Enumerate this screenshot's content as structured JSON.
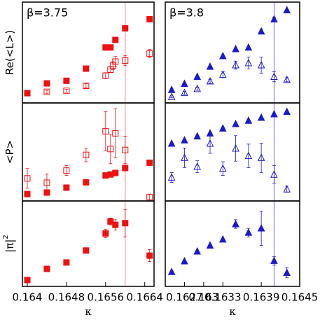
{
  "chart_data": [
    {
      "type": "scatter",
      "annotation": "β=3.75",
      "annotation_color": "#ee1111",
      "ylabel": "Re(<L>)",
      "x": [
        0.164,
        0.1644,
        0.1648,
        0.1652,
        0.1656,
        0.1657,
        0.16575,
        0.1658,
        0.166,
        0.1665
      ],
      "xlim": [
        0.1639,
        0.16659
      ],
      "ylim": [
        0,
        100
      ],
      "vline": 0.166,
      "vline_color": "#f08080",
      "series": [
        {
          "color": "#ee1111",
          "marker": "square",
          "filled": true,
          "values": [
            9.7,
            19.4,
            22,
            34,
            55,
            55,
            null,
            62.5,
            74,
            83
          ],
          "errors": [
            null,
            null,
            null,
            null,
            null,
            null,
            null,
            null,
            2,
            2
          ]
        },
        {
          "color": "#ee1111",
          "marker": "square",
          "filled": false,
          "values": [
            9.7,
            11,
            12,
            17,
            27,
            33,
            37,
            41,
            42,
            49
          ],
          "errors": [
            1.5,
            1.5,
            1.5,
            2,
            3,
            3,
            4,
            5,
            5,
            4
          ]
        }
      ]
    },
    {
      "type": "scatter",
      "annotation": "β=3.8",
      "annotation_color": "#1a1acc",
      "x": [
        0.1625,
        0.1627,
        0.1629,
        0.1631,
        0.1633,
        0.1635,
        0.1637,
        0.1639,
        0.1641,
        0.1643
      ],
      "xlim": [
        0.1624,
        0.1645
      ],
      "ylim": [
        0,
        100
      ],
      "vline": 0.1641,
      "vline_color": "#6a6aee",
      "series": [
        {
          "color": "#1a1acc",
          "marker": "triangle",
          "filled": true,
          "values": [
            13,
            19,
            26,
            36,
            46.5,
            53.5,
            55,
            71,
            83,
            92
          ],
          "errors": [
            null,
            null,
            null,
            null,
            null,
            null,
            null,
            2,
            2,
            null
          ]
        },
        {
          "color": "#1a1acc",
          "marker": "triangle",
          "filled": false,
          "values": [
            6,
            10,
            14,
            21.5,
            28,
            37.5,
            39.6,
            37.5,
            26,
            23
          ],
          "errors": [
            1,
            1.5,
            1.5,
            2,
            3,
            4,
            6,
            8,
            5,
            2
          ]
        }
      ]
    },
    {
      "type": "scatter",
      "ylabel": "<P>",
      "x": [
        0.164,
        0.1644,
        0.1648,
        0.1652,
        0.1656,
        0.1657,
        0.16575,
        0.1658,
        0.166,
        0.1665
      ],
      "xlim": [
        0.1639,
        0.16659
      ],
      "ylim": [
        0,
        100
      ],
      "vline": 0.166,
      "vline_color": "#f08080",
      "series": [
        {
          "color": "#ee1111",
          "marker": "square",
          "filled": true,
          "values": [
            7,
            8.6,
            13.6,
            19,
            26,
            27,
            null,
            28.6,
            33.6,
            39
          ],
          "errors": [
            null,
            null,
            null,
            null,
            null,
            null,
            null,
            null,
            null,
            null
          ]
        },
        {
          "color": "#ee1111",
          "marker": "square",
          "filled": false,
          "values": [
            23,
            18.6,
            31,
            47,
            71,
            53,
            null,
            69,
            52,
            4
          ],
          "errors": [
            10,
            9,
            5,
            7,
            20,
            15,
            null,
            25,
            14,
            3
          ]
        }
      ]
    },
    {
      "type": "scatter",
      "x": [
        0.1625,
        0.1627,
        0.1629,
        0.1631,
        0.1633,
        0.1635,
        0.1637,
        0.1639,
        0.1641,
        0.1643
      ],
      "xlim": [
        0.1624,
        0.1645
      ],
      "ylim": [
        0,
        100
      ],
      "vline": 0.1641,
      "vline_color": "#6a6aee",
      "series": [
        {
          "color": "#1a1acc",
          "marker": "triangle",
          "filled": true,
          "values": [
            58.6,
            62,
            66,
            69,
            74,
            78.6,
            82,
            85,
            88.6,
            91
          ],
          "errors": [
            null,
            null,
            null,
            null,
            null,
            null,
            null,
            null,
            null,
            null
          ]
        },
        {
          "color": "#1a1acc",
          "marker": "triangle",
          "filled": false,
          "values": [
            24,
            44,
            35,
            58.6,
            33,
            53.6,
            46,
            44,
            27,
            12
          ],
          "errors": [
            5,
            10,
            6,
            10,
            7,
            13,
            12,
            15,
            9,
            3
          ]
        }
      ]
    },
    {
      "type": "scatter",
      "ylabel": "|π|",
      "ylabel_sup": "2",
      "xlabel": "κ",
      "x": [
        0.164,
        0.1644,
        0.1648,
        0.1652,
        0.1656,
        0.1657,
        0.16575,
        0.1658,
        0.166,
        0.1665
      ],
      "xlim": [
        0.1639,
        0.16659
      ],
      "ylim": [
        0,
        100
      ],
      "xticks": [
        0.164,
        0.1648,
        0.1656,
        0.1664
      ],
      "vline": 0.166,
      "vline_color": "#f08080",
      "series": [
        {
          "color": "#ee1111",
          "marker": "square",
          "filled": true,
          "values": [
            7.4,
            20.5,
            28,
            42,
            62,
            76,
            null,
            72,
            74,
            36
          ],
          "errors": [
            null,
            null,
            null,
            null,
            5,
            4,
            null,
            6,
            16,
            7
          ]
        }
      ]
    },
    {
      "type": "scatter",
      "xlabel": "κ",
      "x": [
        0.1625,
        0.1627,
        0.1629,
        0.1631,
        0.1633,
        0.1635,
        0.1637,
        0.1639,
        0.1641,
        0.1643
      ],
      "xlim": [
        0.1624,
        0.1645
      ],
      "ylim": [
        0,
        100
      ],
      "xticks": [
        0.1627,
        0.163,
        0.1633,
        0.1639,
        0.1645
      ],
      "vline": 0.1641,
      "vline_color": "#6a6aee",
      "series": [
        {
          "color": "#1a1acc",
          "marker": "triangle",
          "filled": true,
          "values": [
            17,
            29.5,
            41,
            48,
            55,
            73,
            63,
            68,
            30,
            16
          ],
          "errors": [
            null,
            null,
            null,
            null,
            null,
            5,
            5,
            20,
            5,
            6
          ]
        }
      ]
    }
  ]
}
